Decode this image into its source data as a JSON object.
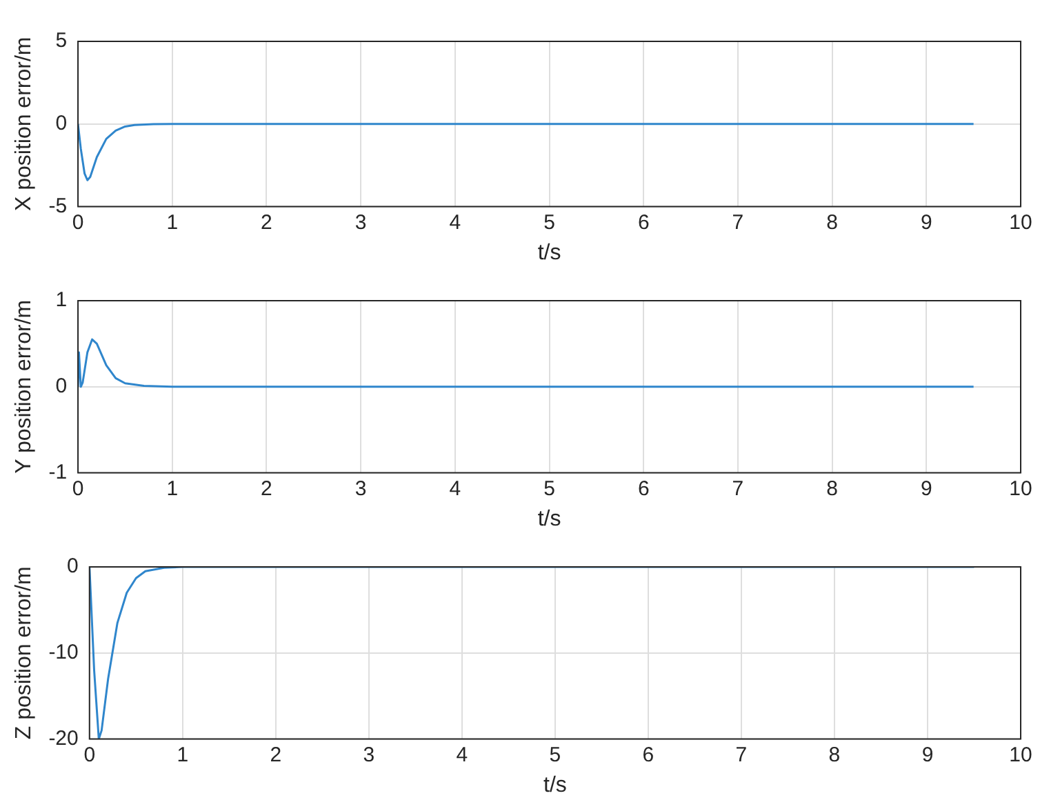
{
  "chart_data": [
    {
      "type": "line",
      "xlabel": "t/s",
      "ylabel": "X position error/m",
      "xlim": [
        0,
        10
      ],
      "xticks": [
        0,
        1,
        2,
        3,
        4,
        5,
        6,
        7,
        8,
        9,
        10
      ],
      "ylim": [
        -5,
        5
      ],
      "yticks": [
        -5,
        0,
        5
      ],
      "grid": true,
      "legend": false,
      "series": [
        {
          "color": "#2f86cc",
          "x": [
            0,
            0.03,
            0.07,
            0.1,
            0.13,
            0.2,
            0.3,
            0.4,
            0.5,
            0.6,
            0.8,
            1,
            9.5
          ],
          "values": [
            0,
            -1.5,
            -3.0,
            -3.4,
            -3.2,
            -2.0,
            -0.9,
            -0.4,
            -0.15,
            -0.06,
            -0.01,
            0,
            0
          ]
        }
      ]
    },
    {
      "type": "line",
      "xlabel": "t/s",
      "ylabel": "Y position error/m",
      "xlim": [
        0,
        10
      ],
      "xticks": [
        0,
        1,
        2,
        3,
        4,
        5,
        6,
        7,
        8,
        9,
        10
      ],
      "ylim": [
        -1,
        1
      ],
      "yticks": [
        -1,
        0,
        1
      ],
      "grid": true,
      "legend": false,
      "series": [
        {
          "color": "#2f86cc",
          "x": [
            0,
            0.01,
            0.03,
            0.05,
            0.1,
            0.15,
            0.2,
            0.3,
            0.4,
            0.5,
            0.7,
            1,
            9.5
          ],
          "values": [
            0,
            0.4,
            0,
            0.05,
            0.4,
            0.55,
            0.5,
            0.25,
            0.1,
            0.04,
            0.01,
            0,
            0
          ]
        }
      ]
    },
    {
      "type": "line",
      "xlabel": "t/s",
      "ylabel": "Z position error/m",
      "xlim": [
        0,
        10
      ],
      "xticks": [
        0,
        1,
        2,
        3,
        4,
        5,
        6,
        7,
        8,
        9,
        10
      ],
      "ylim": [
        -20,
        0
      ],
      "yticks": [
        -20,
        -10,
        0
      ],
      "grid": true,
      "legend": false,
      "series": [
        {
          "color": "#2f86cc",
          "x": [
            0,
            0.05,
            0.1,
            0.13,
            0.2,
            0.3,
            0.4,
            0.5,
            0.6,
            0.8,
            1,
            9.5
          ],
          "values": [
            0,
            -12,
            -20,
            -19,
            -13,
            -6.5,
            -3,
            -1.3,
            -0.5,
            -0.1,
            0,
            0
          ]
        }
      ]
    }
  ]
}
